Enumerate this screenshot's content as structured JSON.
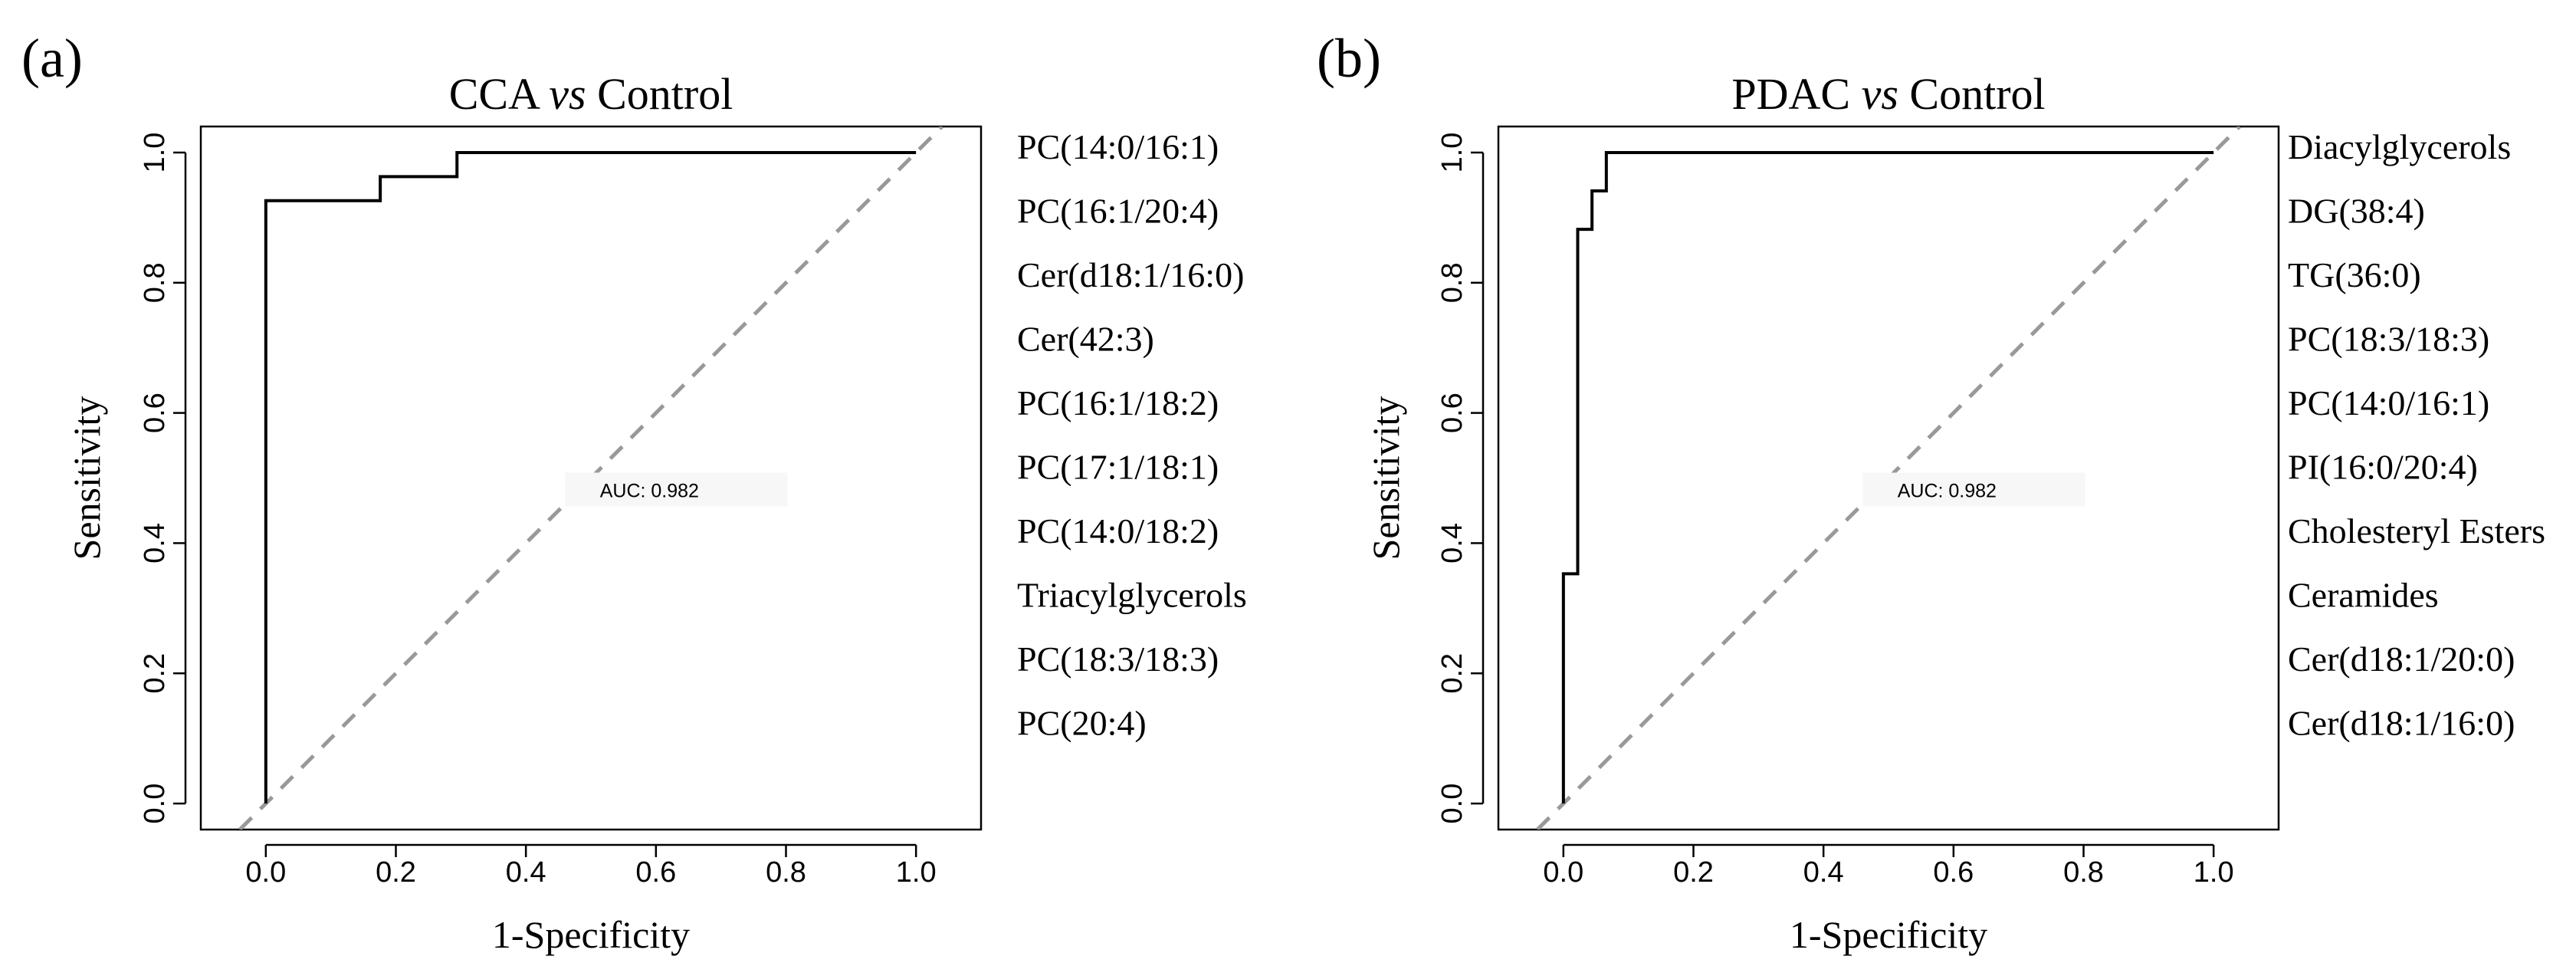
{
  "chart_data": [
    {
      "type": "line",
      "panel_label": "(a)",
      "title_prefix": "CCA",
      "title_vs": "vs",
      "title_suffix": "Control",
      "xlabel": "1-Specificity",
      "ylabel": "Sensitivity",
      "xlim": [
        -0.1,
        1.1
      ],
      "ylim": [
        -0.04,
        1.04
      ],
      "xticks": [
        0.0,
        0.2,
        0.4,
        0.6,
        0.8,
        1.0
      ],
      "yticks": [
        0.0,
        0.2,
        0.4,
        0.6,
        0.8,
        1.0
      ],
      "tick_labels": [
        "0.0",
        "0.2",
        "0.4",
        "0.6",
        "0.8",
        "1.0"
      ],
      "auc_label": "AUC: 0.982",
      "auc_position": [
        0.59,
        0.48
      ],
      "series": [
        {
          "name": "ROC",
          "x": [
            0.0,
            0.0,
            0.176,
            0.176,
            0.294,
            0.294,
            1.0
          ],
          "y": [
            0.0,
            0.926,
            0.926,
            0.963,
            0.963,
            1.0,
            1.0
          ]
        },
        {
          "name": "reference",
          "x": [
            -0.04,
            1.04
          ],
          "y": [
            -0.04,
            1.04
          ]
        }
      ],
      "legend": [
        "PC(14:0/16:1)",
        "PC(16:1/20:4)",
        "Cer(d18:1/16:0)",
        "Cer(42:3)",
        "PC(16:1/18:2)",
        "PC(17:1/18:1)",
        "PC(14:0/18:2)",
        "Triacylglycerols",
        "PC(18:3/18:3)",
        "PC(20:4)"
      ]
    },
    {
      "type": "line",
      "panel_label": "(b)",
      "title_prefix": "PDAC",
      "title_vs": "vs",
      "title_suffix": "Control",
      "xlabel": "1-Specificity",
      "ylabel": "Sensitivity",
      "xlim": [
        -0.1,
        1.1
      ],
      "ylim": [
        -0.04,
        1.04
      ],
      "xticks": [
        0.0,
        0.2,
        0.4,
        0.6,
        0.8,
        1.0
      ],
      "yticks": [
        0.0,
        0.2,
        0.4,
        0.6,
        0.8,
        1.0
      ],
      "tick_labels": [
        "0.0",
        "0.2",
        "0.4",
        "0.6",
        "0.8",
        "1.0"
      ],
      "auc_label": "AUC: 0.982",
      "auc_position": [
        0.59,
        0.48
      ],
      "series": [
        {
          "name": "ROC",
          "x": [
            0.0,
            0.0,
            0.022,
            0.022,
            0.044,
            0.044,
            0.066,
            0.066,
            1.0
          ],
          "y": [
            0.0,
            0.353,
            0.353,
            0.882,
            0.882,
            0.941,
            0.941,
            1.0,
            1.0
          ]
        },
        {
          "name": "reference",
          "x": [
            -0.04,
            1.04
          ],
          "y": [
            -0.04,
            1.04
          ]
        }
      ],
      "legend": [
        "Diacylglycerols",
        "DG(38:4)",
        "TG(36:0)",
        "PC(18:3/18:3)",
        "PC(14:0/16:1)",
        "PI(16:0/20:4)",
        "Cholesteryl Esters",
        "Ceramides",
        "Cer(d18:1/20:0)",
        "Cer(d18:1/16:0)"
      ]
    }
  ]
}
